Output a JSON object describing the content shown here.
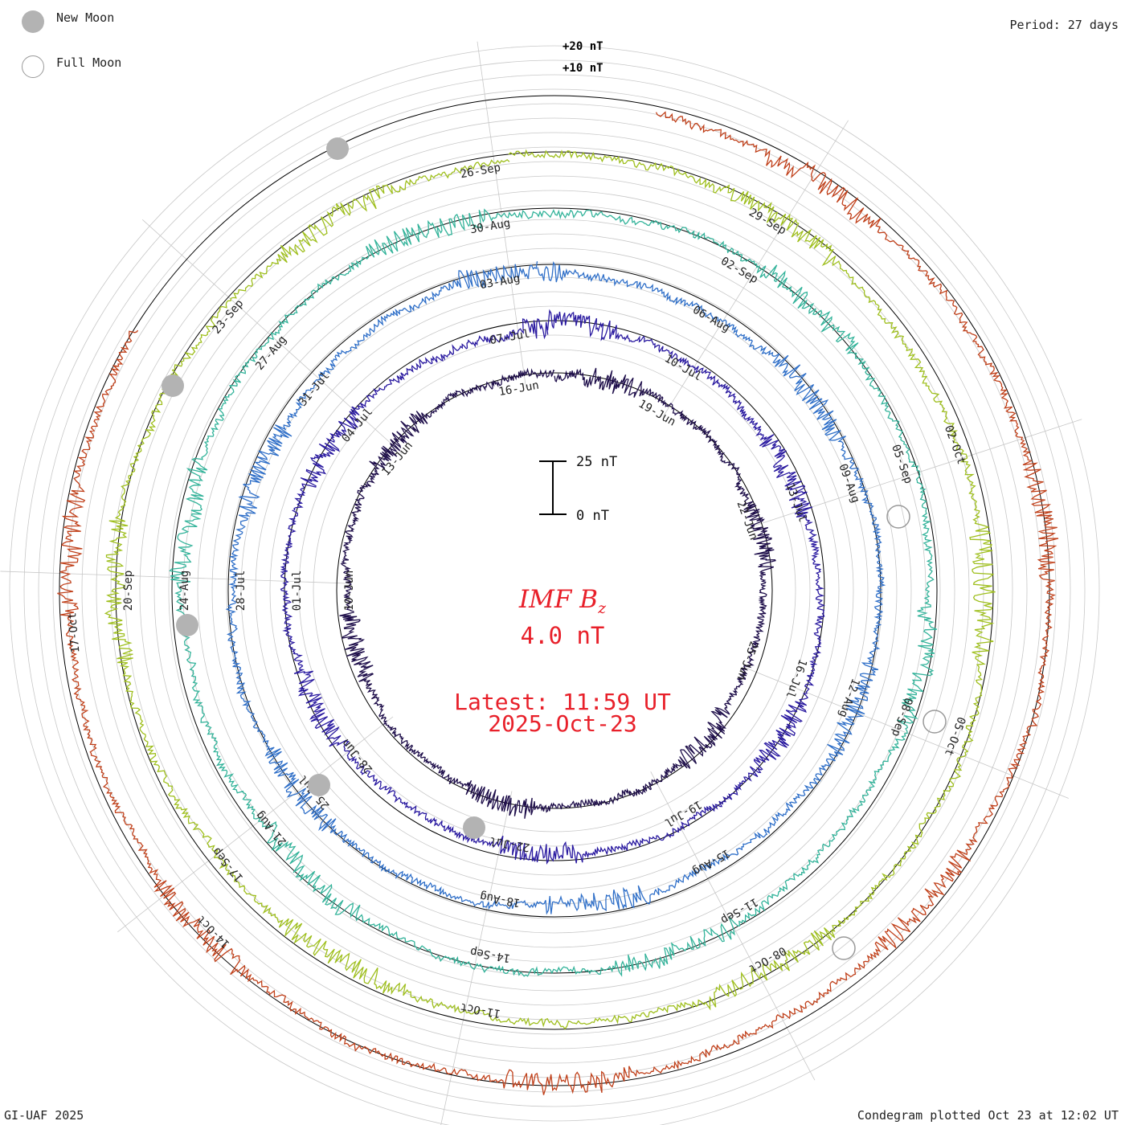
{
  "legend": {
    "new_moon": "New Moon",
    "full_moon": "Full Moon"
  },
  "period_label": "Period: 27 days",
  "credit": "GI-UAF 2025",
  "plotted_label": "Condegram plotted Oct 23 at 12:02 UT",
  "center": {
    "title_main": "IMF B",
    "title_sub": "z",
    "value": "4.0 nT",
    "latest_time": "Latest: 11:59 UT",
    "latest_date": "2025-Oct-23"
  },
  "colors": {
    "title": "#e8202a",
    "grid": "#c8c8c8",
    "axis": "#000000",
    "moon": "#b3b3b3"
  },
  "chart_data": {
    "type": "line",
    "variable": "IMF Bz",
    "unit": "nT",
    "period_days": 27,
    "scale_bar": {
      "top_label": "25 nT",
      "bottom_label": "0 nT"
    },
    "scale_labels": [
      "+20 nT",
      "+10 nT"
    ],
    "cycles": [
      {
        "color": "#1e0e4a",
        "labels": [
          "10-Jun",
          "13-Jun",
          "16-Jun",
          "19-Jun",
          "22-Jun",
          "25-Jun"
        ]
      },
      {
        "color": "#2a1aa0",
        "labels": [
          "01-Jul",
          "04-Jul",
          "07-Jul",
          "10-Jul",
          "13-Jul",
          "16-Jul",
          "19-Jul",
          "22-Jul",
          "28-Jun"
        ]
      },
      {
        "color": "#2f6fc8",
        "labels": [
          "28-Jul",
          "31-Jul",
          "03-Aug",
          "06-Aug",
          "09-Aug",
          "12-Aug",
          "15-Aug",
          "18-Aug",
          "25-Jul"
        ]
      },
      {
        "color": "#33b39a",
        "labels": [
          "24-Aug",
          "27-Aug",
          "30-Aug",
          "02-Sep",
          "05-Sep",
          "08-Sep",
          "11-Sep",
          "14-Sep",
          "21-Aug"
        ]
      },
      {
        "color": "#9fbf1e",
        "labels": [
          "20-Sep",
          "23-Sep",
          "26-Sep",
          "29-Sep",
          "02-Oct",
          "05-Oct",
          "08-Oct",
          "11-Oct",
          "17-Sep"
        ]
      },
      {
        "color": "#c0401a",
        "labels": [
          "17-Oct",
          "14-Oct"
        ]
      }
    ]
  }
}
